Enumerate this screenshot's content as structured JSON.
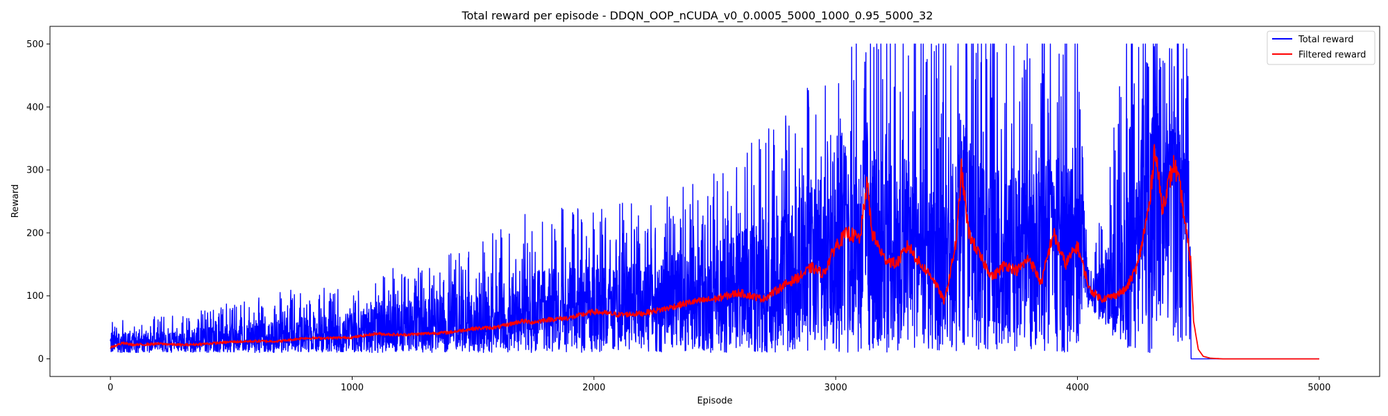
{
  "chart_data": {
    "type": "line",
    "title": "Total reward per episode - DDQN_OOP_nCUDA_v0_0.0005_5000_1000_0.95_5000_32",
    "xlabel": "Episode",
    "ylabel": "Reward",
    "xlim": [
      -250,
      5250
    ],
    "ylim": [
      -28,
      528
    ],
    "xticks": [
      0,
      1000,
      2000,
      3000,
      4000,
      5000
    ],
    "yticks": [
      0,
      100,
      200,
      300,
      400,
      500
    ],
    "grid": false,
    "legend": "top-right",
    "series": [
      {
        "name": "Total reward",
        "color": "#0000ff",
        "description_points": {
          "x": [
            0,
            250,
            500,
            750,
            1000,
            1250,
            1500,
            1750,
            2000,
            2250,
            2500,
            2750,
            3000,
            3250,
            3500,
            3750,
            4000,
            4050,
            4200,
            4300,
            4460,
            4470,
            5000
          ],
          "low": [
            10,
            10,
            10,
            10,
            10,
            10,
            10,
            10,
            10,
            10,
            10,
            10,
            10,
            10,
            10,
            10,
            10,
            80,
            10,
            10,
            10,
            0,
            0
          ],
          "high": [
            60,
            70,
            90,
            110,
            120,
            160,
            180,
            240,
            240,
            260,
            300,
            380,
            500,
            500,
            500,
            500,
            500,
            125,
            500,
            500,
            500,
            0,
            0
          ]
        }
      },
      {
        "name": "Filtered reward",
        "color": "#ff0000",
        "points": {
          "x": [
            0,
            50,
            100,
            200,
            300,
            400,
            500,
            600,
            700,
            800,
            900,
            1000,
            1100,
            1200,
            1300,
            1400,
            1500,
            1600,
            1700,
            1750,
            1800,
            1900,
            2000,
            2100,
            2200,
            2300,
            2400,
            2500,
            2600,
            2700,
            2800,
            2850,
            2900,
            2950,
            3000,
            3050,
            3100,
            3130,
            3150,
            3200,
            3250,
            3300,
            3350,
            3400,
            3450,
            3500,
            3520,
            3550,
            3600,
            3650,
            3700,
            3750,
            3800,
            3850,
            3900,
            3950,
            4000,
            4050,
            4100,
            4150,
            4200,
            4250,
            4300,
            4320,
            4350,
            4400,
            4430,
            4450,
            4470,
            4480,
            4500,
            4520,
            4550,
            4600,
            5000
          ],
          "y": [
            18,
            25,
            22,
            24,
            22,
            24,
            27,
            28,
            28,
            33,
            33,
            34,
            40,
            38,
            40,
            42,
            48,
            50,
            60,
            58,
            62,
            65,
            75,
            70,
            72,
            80,
            90,
            95,
            105,
            95,
            120,
            130,
            145,
            135,
            180,
            200,
            190,
            280,
            200,
            160,
            150,
            180,
            150,
            130,
            90,
            190,
            300,
            200,
            160,
            130,
            150,
            140,
            160,
            120,
            200,
            150,
            180,
            110,
            95,
            100,
            110,
            150,
            250,
            340,
            240,
            310,
            260,
            200,
            150,
            60,
            15,
            4,
            1,
            0,
            0
          ]
        }
      }
    ]
  }
}
